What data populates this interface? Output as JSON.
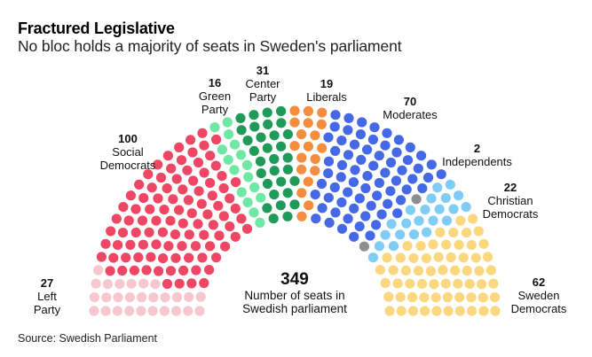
{
  "title": "Fractured Legislative",
  "subtitle": "No bloc holds a majority of seats in Sweden's parliament",
  "source": "Source: Swedish Parliament",
  "chart_data": {
    "type": "parliament-hemicycle",
    "title": "Fractured Legislative",
    "subtitle": "No bloc holds a majority of seats in Sweden's parliament",
    "total_seats": 349,
    "total_label": "Number of seats in Swedish parliament",
    "rows": 10,
    "series": [
      {
        "name": "Left Party",
        "seats": 27,
        "color": "#f7c7cf"
      },
      {
        "name": "Social Democrats",
        "seats": 100,
        "color": "#ee4763"
      },
      {
        "name": "Green Party",
        "seats": 16,
        "color": "#6ee8a3"
      },
      {
        "name": "Center Party",
        "seats": 31,
        "color": "#1f9a58"
      },
      {
        "name": "Liberals",
        "seats": 19,
        "color": "#f58d3f"
      },
      {
        "name": "Moderates",
        "seats": 70,
        "color": "#4468e6"
      },
      {
        "name": "Independents",
        "seats": 2,
        "color": "#8e8e8e"
      },
      {
        "name": "Christian Democrats",
        "seats": 22,
        "color": "#7fcdf5"
      },
      {
        "name": "Sweden Democrats",
        "seats": 62,
        "color": "#fbd880"
      }
    ],
    "source": "Source: Swedish Parliament"
  },
  "labels": {
    "left_party": {
      "num": "27",
      "line1": "Left",
      "line2": "Party"
    },
    "social_democrats": {
      "num": "100",
      "line1": "Social",
      "line2": "Democrats"
    },
    "green_party": {
      "num": "16",
      "line1": "Green",
      "line2": "Party"
    },
    "center_party": {
      "num": "31",
      "line1": "Center",
      "line2": "Party"
    },
    "liberals": {
      "num": "19",
      "line1": "Liberals"
    },
    "moderates": {
      "num": "70",
      "line1": "Moderates"
    },
    "independents": {
      "num": "2",
      "line1": "Independents"
    },
    "christian_democrats": {
      "num": "22",
      "line1": "Christian",
      "line2": "Democrats"
    },
    "sweden_democrats": {
      "num": "62",
      "line1": "Sweden",
      "line2": "Democrats"
    },
    "total": {
      "num": "349",
      "line1": "Number of seats in",
      "line2": "Swedish parliament"
    }
  }
}
